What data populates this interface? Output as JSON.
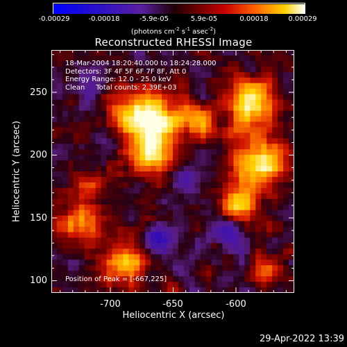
{
  "colorbar": {
    "ticks": [
      "-0.00029",
      "-0.00018",
      "-5.9e-05",
      "5.9e-05",
      "0.00018",
      "0.00029"
    ],
    "units_prefix": "(photons cm",
    "units_e1": "-2",
    "units_mid1": " s",
    "units_e2": "-1",
    "units_mid2": " asec",
    "units_e3": "-2",
    "units_suffix": ")"
  },
  "title": "Reconstructed RHESSI Image",
  "info": {
    "line1": "18-Mar-2004 18:20:40.000 to 18:24:28.000",
    "line2": "Detectors: 3F 4F 5F 6F 7F 8F, Att 0",
    "line3": "Energy Range: 12.0 - 25.0 keV",
    "line4": "Clean     Total counts: 2.39E+03"
  },
  "peak": "Position of Peak = [-667,225]",
  "x_axis": {
    "label": "Heliocentric X (arcsec)",
    "ticks": [
      "-700",
      "-650",
      "-600"
    ]
  },
  "y_axis": {
    "label": "Heliocentric Y (arcsec)",
    "ticks": [
      "250",
      "200",
      "150",
      "100"
    ]
  },
  "timestamp": "29-Apr-2022 13:39"
}
